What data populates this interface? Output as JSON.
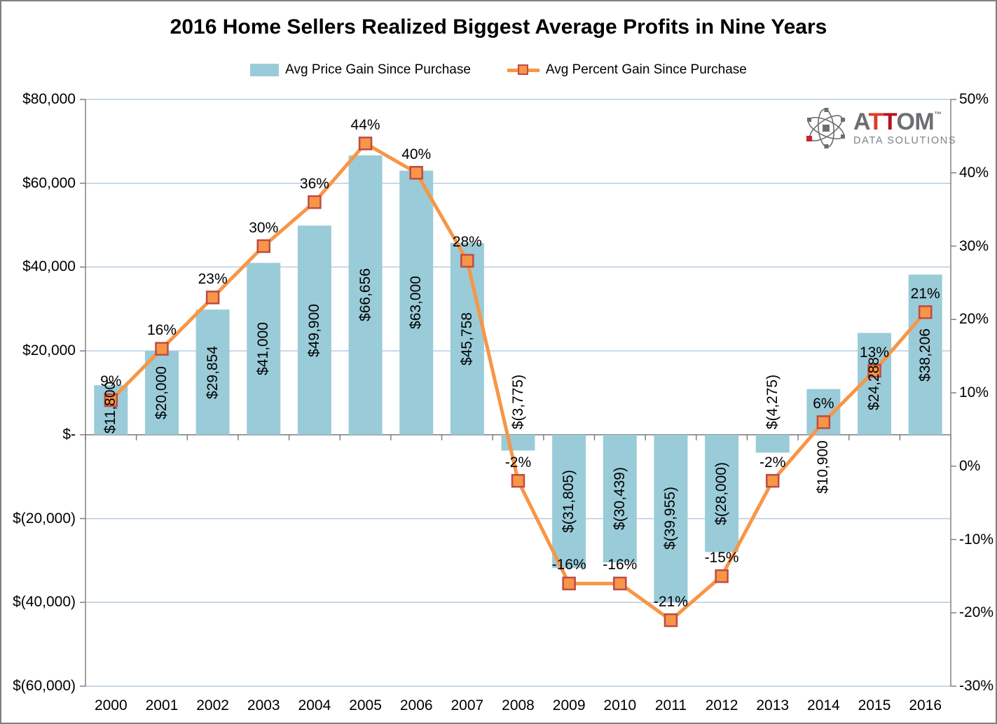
{
  "title": "2016 Home Sellers Realized Biggest Average Profits in Nine Years",
  "legend": {
    "bar_label": "Avg Price Gain Since Purchase",
    "line_label": "Avg Percent Gain Since Purchase"
  },
  "logo": {
    "part_a": "A",
    "part_tt": "TT",
    "part_om": "OM",
    "trademark": "™",
    "tagline": "DATA SOLUTIONS"
  },
  "colors": {
    "bar": "#9ACBD8",
    "line": "#F79646",
    "marker_fill": "#F79646",
    "marker_border": "#BE4B48",
    "grid": "#B8CCE4",
    "axis": "#808080",
    "text": "#000000",
    "logo_gray": "#6D6E71",
    "logo_red_light": "#DE3A2A",
    "logo_red_dark": "#B5121B",
    "logo_tagline_gray": "#808285",
    "logo_accent_red": "#CE202F"
  },
  "chart_data": {
    "type": "combo_bar_line",
    "categories": [
      "2000",
      "2001",
      "2002",
      "2003",
      "2004",
      "2005",
      "2006",
      "2007",
      "2008",
      "2009",
      "2010",
      "2011",
      "2012",
      "2013",
      "2014",
      "2015",
      "2016"
    ],
    "series": [
      {
        "name": "Avg Price Gain Since Purchase",
        "type": "bar",
        "axis": "left",
        "values": [
          11800,
          20000,
          29854,
          41000,
          49900,
          66656,
          63000,
          45758,
          -3775,
          -31805,
          -30439,
          -39955,
          -28000,
          -4275,
          10900,
          24288,
          38206
        ],
        "data_labels": [
          "$11,800",
          "$20,000",
          "$29,854",
          "$41,000",
          "$49,900",
          "$66,656",
          "$63,000",
          "$45,758",
          "$(3,775)",
          "$(31,805)",
          "$(30,439)",
          "$(39,955)",
          "$(28,000)",
          "$(4,275)",
          "$10,900",
          "$24,288",
          "$38,206"
        ],
        "label_placement": [
          "center",
          "center",
          "center",
          "center",
          "center",
          "center",
          "center",
          "center",
          "outside_base",
          "center",
          "center",
          "center",
          "center",
          "outside_base",
          "outside_base",
          "center",
          "center"
        ]
      },
      {
        "name": "Avg Percent Gain Since Purchase",
        "type": "line",
        "axis": "right",
        "values": [
          9,
          16,
          23,
          30,
          36,
          44,
          40,
          28,
          -2,
          -16,
          -16,
          -21,
          -15,
          -2,
          6,
          13,
          21
        ],
        "data_labels": [
          "9%",
          "16%",
          "23%",
          "30%",
          "36%",
          "44%",
          "40%",
          "28%",
          "-2%",
          "-16%",
          "-16%",
          "-21%",
          "-15%",
          "-2%",
          "6%",
          "13%",
          "21%"
        ]
      }
    ],
    "left_axis": {
      "tick_labels": [
        "$80,000",
        "$60,000",
        "$40,000",
        "$20,000",
        "$-",
        "$(20,000)",
        "$(40,000)",
        "$(60,000)"
      ],
      "max": 80000,
      "min": -60000,
      "step": 20000
    },
    "right_axis": {
      "tick_labels": [
        "50%",
        "40%",
        "30%",
        "20%",
        "10%",
        "0%",
        "-10%",
        "-20%",
        "-30%"
      ],
      "max": 50,
      "min": -30,
      "step": 10
    },
    "grid": "horizontal",
    "legend_position": "top"
  }
}
